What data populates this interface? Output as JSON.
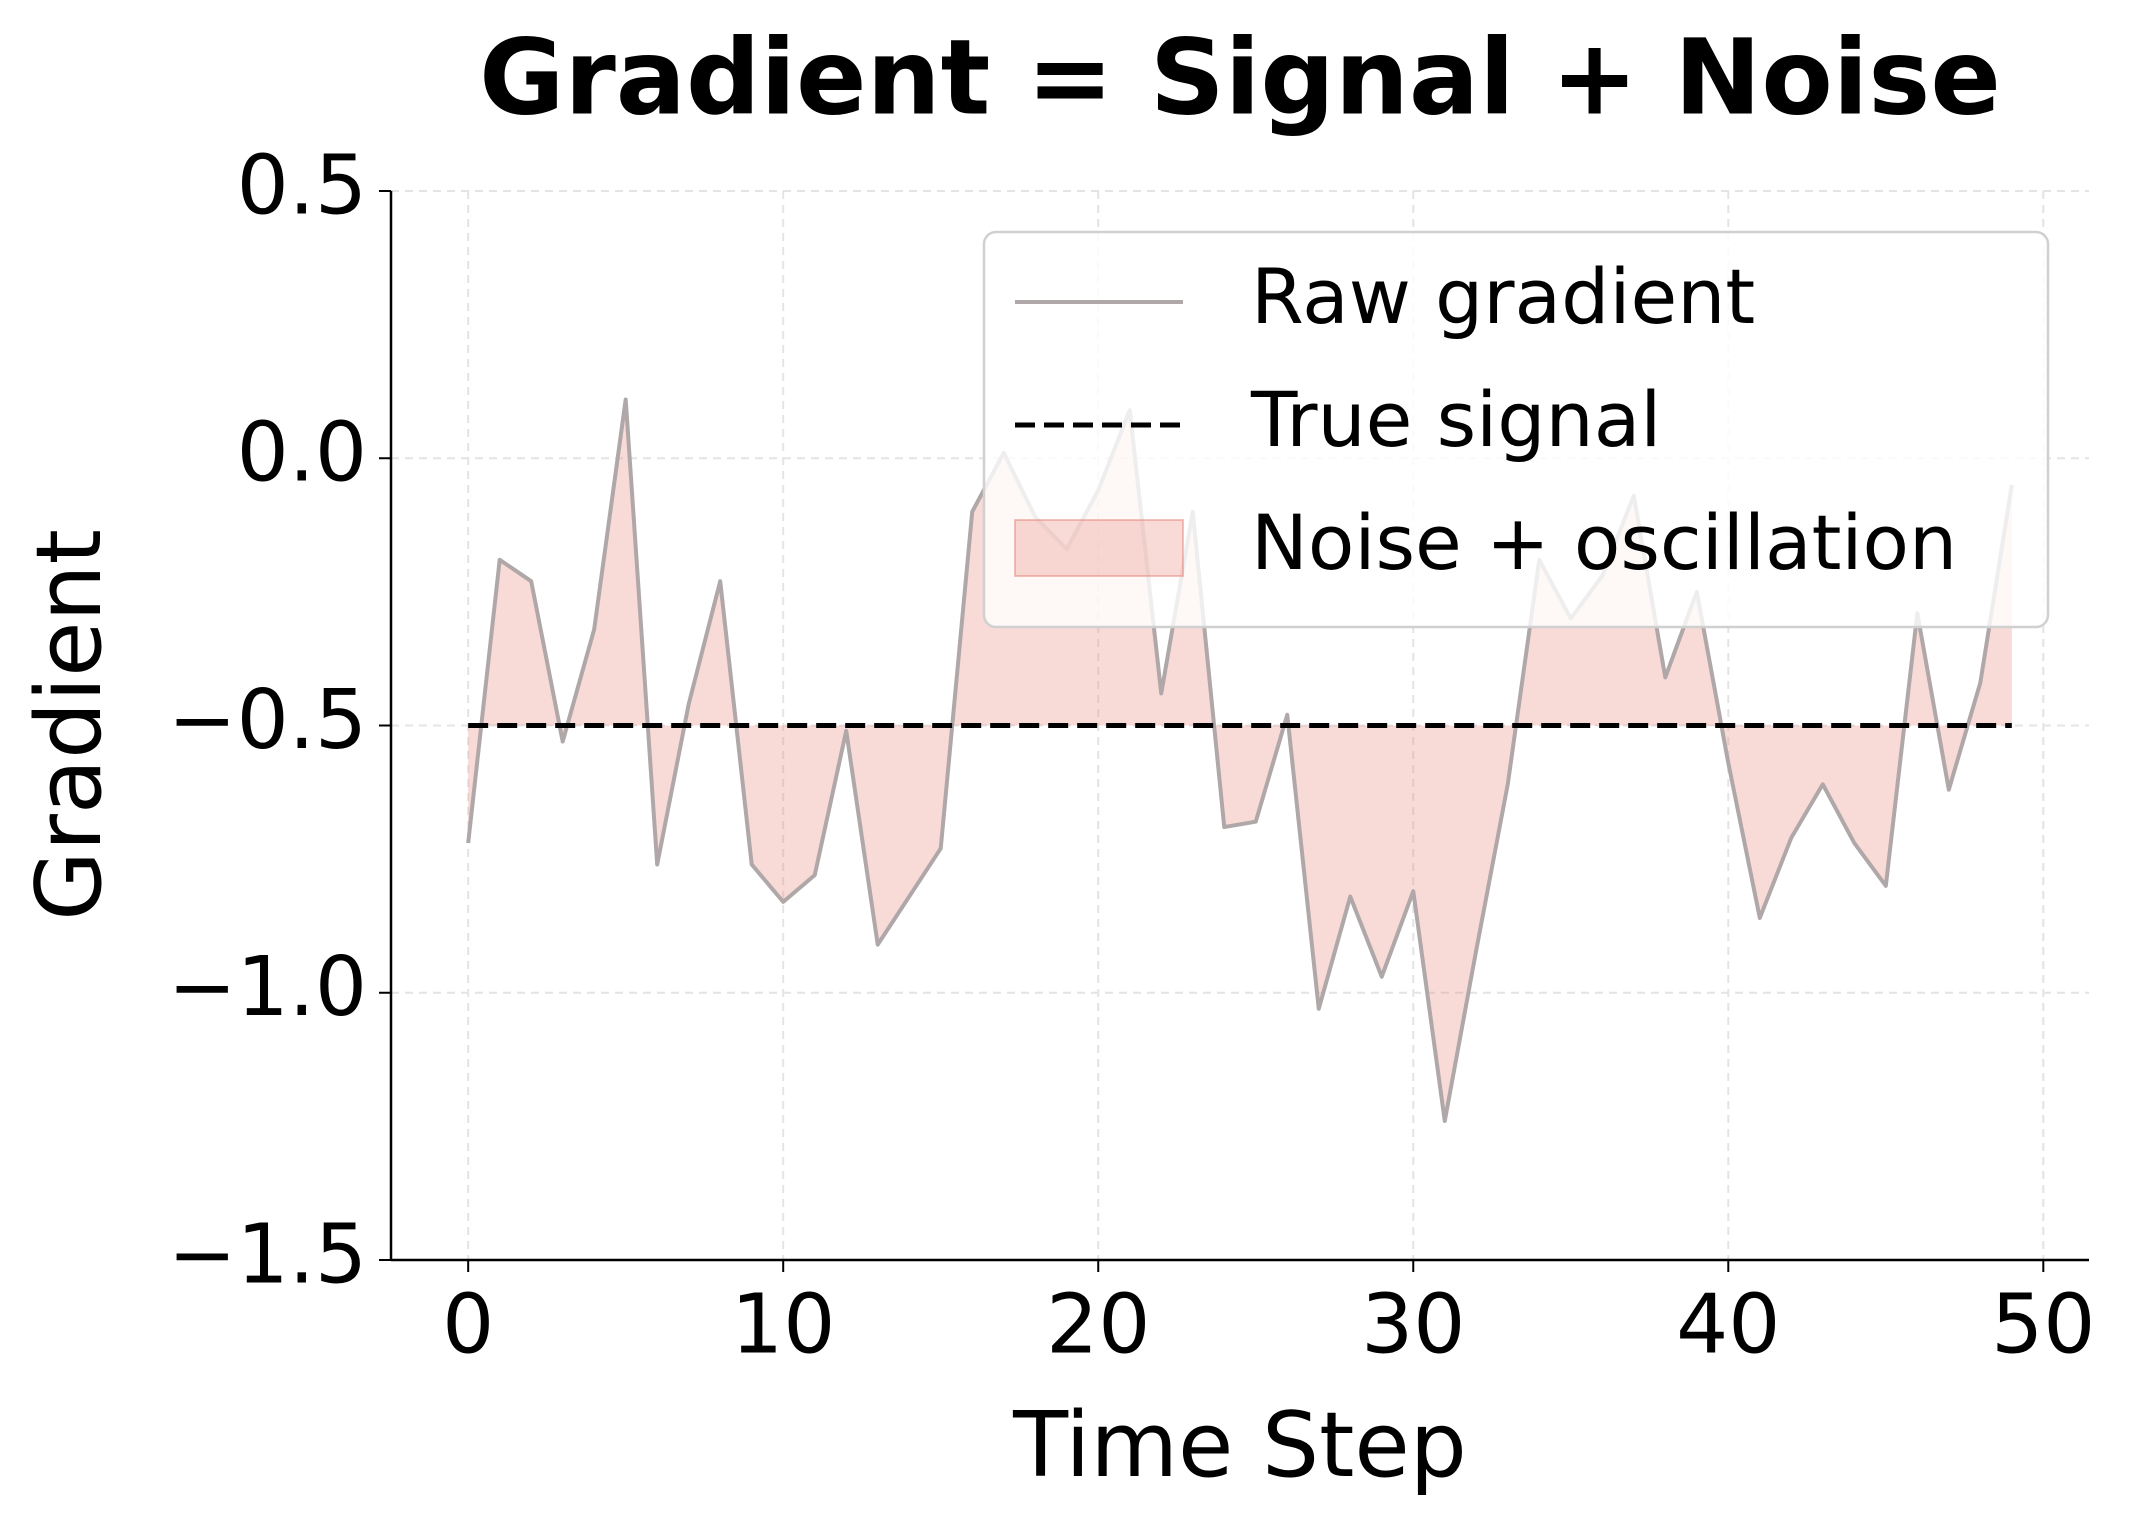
{
  "chart_data": {
    "type": "line",
    "title": "Gradient = Signal + Noise",
    "x_label": "Time Step",
    "y_label": "Gradient",
    "x": [
      0,
      1,
      2,
      3,
      4,
      5,
      6,
      7,
      8,
      9,
      10,
      11,
      12,
      13,
      14,
      15,
      16,
      17,
      18,
      19,
      20,
      21,
      22,
      23,
      24,
      25,
      26,
      27,
      28,
      29,
      30,
      31,
      32,
      33,
      34,
      35,
      36,
      37,
      38,
      39,
      40,
      41,
      42,
      43,
      44,
      45,
      46,
      47,
      48,
      49
    ],
    "series": [
      {
        "name": "Raw gradient",
        "color": "#b0a8a8",
        "dash": false,
        "values": [
          -0.72,
          -0.19,
          -0.23,
          -0.53,
          -0.32,
          0.11,
          -0.76,
          -0.46,
          -0.23,
          -0.76,
          -0.83,
          -0.78,
          -0.51,
          -0.91,
          -0.82,
          -0.73,
          -0.1,
          0.01,
          -0.11,
          -0.17,
          -0.06,
          0.09,
          -0.44,
          -0.1,
          -0.69,
          -0.68,
          -0.48,
          -1.03,
          -0.82,
          -0.97,
          -0.81,
          -1.24,
          -0.92,
          -0.61,
          -0.19,
          -0.3,
          -0.22,
          -0.07,
          -0.41,
          -0.25,
          -0.57,
          -0.86,
          -0.71,
          -0.61,
          -0.72,
          -0.8,
          -0.29,
          -0.62,
          -0.42,
          -0.05
        ]
      },
      {
        "name": "True signal",
        "color": "#000000",
        "dash": true,
        "values": [
          -0.5,
          -0.5,
          -0.5,
          -0.5,
          -0.5,
          -0.5,
          -0.5,
          -0.5,
          -0.5,
          -0.5,
          -0.5,
          -0.5,
          -0.5,
          -0.5,
          -0.5,
          -0.5,
          -0.5,
          -0.5,
          -0.5,
          -0.5,
          -0.5,
          -0.5,
          -0.5,
          -0.5,
          -0.5,
          -0.5,
          -0.5,
          -0.5,
          -0.5,
          -0.5,
          -0.5,
          -0.5,
          -0.5,
          -0.5,
          -0.5,
          -0.5,
          -0.5,
          -0.5,
          -0.5,
          -0.5,
          -0.5,
          -0.5,
          -0.5,
          -0.5,
          -0.5,
          -0.5,
          -0.5,
          -0.5,
          -0.5,
          -0.5
        ]
      }
    ],
    "fill": {
      "name": "Noise + oscillation",
      "color": "#e8847a"
    },
    "xlim": [
      -2.45,
      51.45
    ],
    "xticks": [
      0,
      10,
      20,
      30,
      40,
      50
    ],
    "ylim": [
      -1.5,
      0.5
    ],
    "yticks": [
      {
        "value": 0.5,
        "label": "0.5"
      },
      {
        "value": 0.0,
        "label": "0.0"
      },
      {
        "value": -0.5,
        "label": "−0.5"
      },
      {
        "value": -1.0,
        "label": "−1.0"
      },
      {
        "value": -1.5,
        "label": "−1.5"
      }
    ],
    "grid": true,
    "legend": "upper right"
  }
}
